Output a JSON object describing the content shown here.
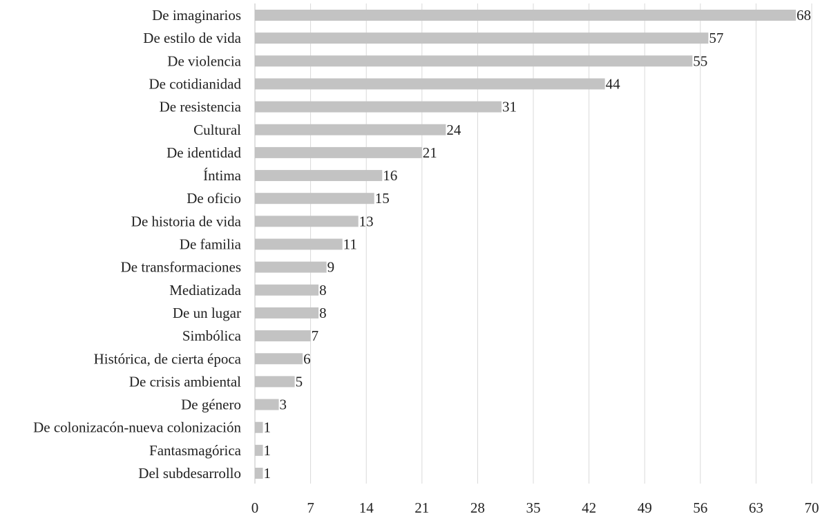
{
  "chart_data": {
    "type": "bar",
    "orientation": "horizontal",
    "title": "",
    "xlabel": "",
    "ylabel": "",
    "categories": [
      "De imaginarios",
      "De estilo de vida",
      "De violencia",
      "De cotidianidad",
      "De resistencia",
      "Cultural",
      "De identidad",
      "Íntima",
      "De oficio",
      "De historia de vida",
      "De familia",
      "De transformaciones",
      "Mediatizada",
      "De un lugar",
      "Simbólica",
      "Histórica, de cierta época",
      "De crisis ambiental",
      "De género",
      "De colonizacón-nueva colonización",
      "Fantasmagórica",
      "Del subdesarrollo"
    ],
    "values": [
      68,
      57,
      55,
      44,
      31,
      24,
      21,
      16,
      15,
      13,
      11,
      9,
      8,
      8,
      7,
      6,
      5,
      3,
      1,
      1,
      1
    ],
    "xlim": [
      0,
      70
    ],
    "xticks": [
      0,
      7,
      14,
      21,
      28,
      35,
      42,
      49,
      56,
      63,
      70
    ],
    "grid": "vertical",
    "legend": "none",
    "bar_color": "#c3c3c3",
    "grid_color": "#d9d9d9"
  }
}
